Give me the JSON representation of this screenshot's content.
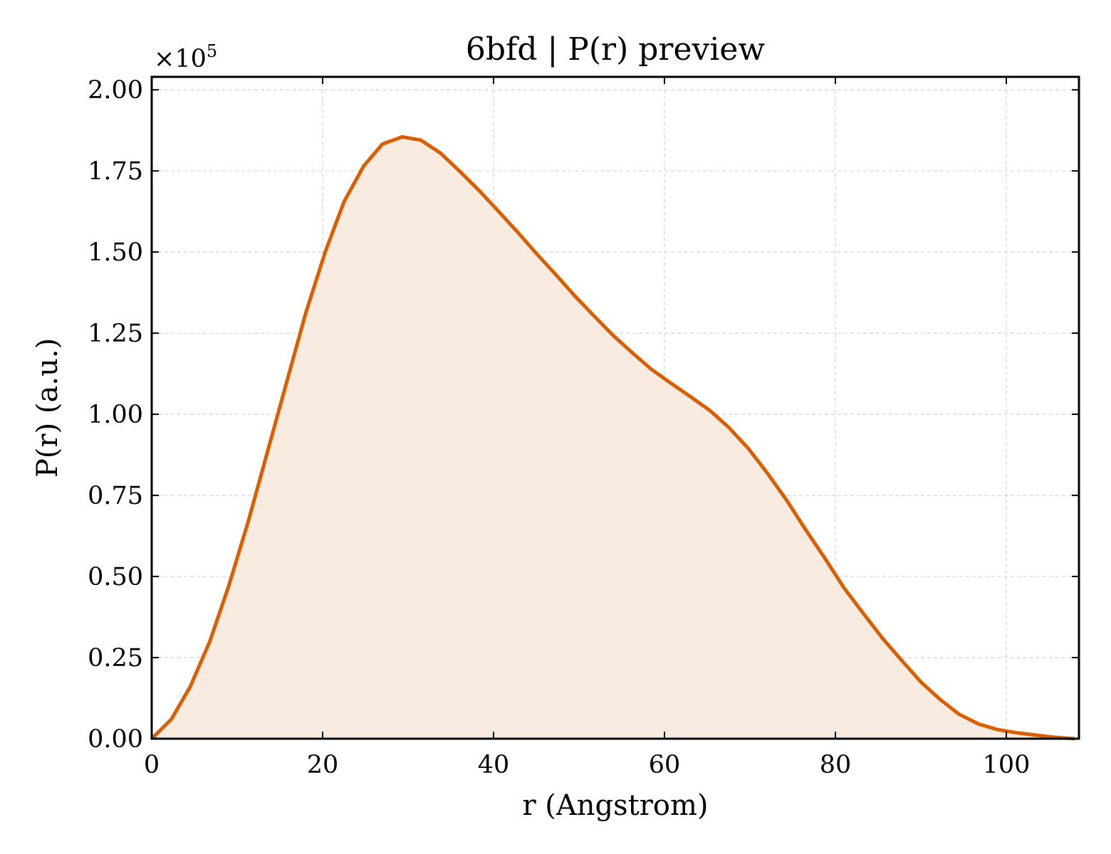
{
  "chart_data": {
    "type": "area",
    "title": "6bfd | P(r) preview",
    "xlabel": "r (Angstrom)",
    "ylabel": "P(r) (a.u.)",
    "y_multiplier_base": "×10",
    "y_multiplier_exp": "5",
    "xlim": [
      0,
      108.5
    ],
    "ylim": [
      0,
      2.04
    ],
    "xticks": [
      0,
      20,
      40,
      60,
      80,
      100
    ],
    "xtick_labels": [
      "0",
      "20",
      "40",
      "60",
      "80",
      "100"
    ],
    "yticks": [
      0,
      0.25,
      0.5,
      0.75,
      1.0,
      1.25,
      1.5,
      1.75,
      2.0
    ],
    "ytick_labels": [
      "0.00",
      "0.25",
      "0.50",
      "0.75",
      "1.00",
      "1.25",
      "1.50",
      "1.75",
      "2.00"
    ],
    "grid": true,
    "line_color": "#d95f02",
    "fill_color": "#f9ebdf",
    "series": [
      {
        "x": [
          0,
          2.3,
          4.5,
          6.8,
          9.0,
          11.3,
          13.5,
          15.8,
          18.0,
          20.3,
          22.5,
          24.8,
          27.0,
          29.3,
          31.5,
          33.8,
          36.0,
          38.3,
          40.5,
          42.8,
          45.0,
          47.3,
          49.5,
          51.8,
          54.0,
          56.3,
          58.5,
          60.8,
          63.0,
          65.3,
          67.5,
          69.8,
          72.0,
          74.3,
          76.5,
          78.8,
          81.0,
          83.3,
          85.5,
          87.8,
          90.0,
          92.3,
          94.5,
          96.8,
          99.0,
          101.3,
          103.5,
          105.8,
          108.0
        ],
        "values": [
          0.0,
          0.06,
          0.16,
          0.3,
          0.47,
          0.67,
          0.88,
          1.1,
          1.31,
          1.5,
          1.655,
          1.765,
          1.833,
          1.855,
          1.845,
          1.805,
          1.75,
          1.69,
          1.628,
          1.562,
          1.496,
          1.43,
          1.365,
          1.302,
          1.243,
          1.188,
          1.138,
          1.095,
          1.055,
          1.012,
          0.96,
          0.895,
          0.82,
          0.735,
          0.645,
          0.555,
          0.465,
          0.385,
          0.31,
          0.24,
          0.175,
          0.12,
          0.075,
          0.045,
          0.028,
          0.018,
          0.011,
          0.004,
          0.0
        ]
      }
    ]
  }
}
